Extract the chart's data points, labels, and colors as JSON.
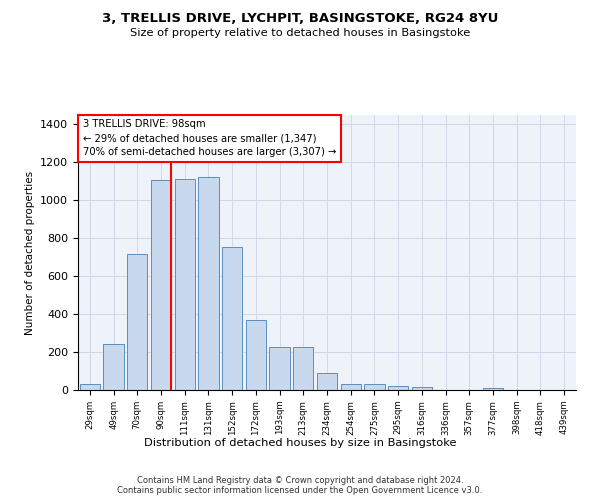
{
  "title": "3, TRELLIS DRIVE, LYCHPIT, BASINGSTOKE, RG24 8YU",
  "subtitle": "Size of property relative to detached houses in Basingstoke",
  "xlabel": "Distribution of detached houses by size in Basingstoke",
  "ylabel": "Number of detached properties",
  "bar_color": "#c9d9ed",
  "bar_edge_color": "#5a8fc2",
  "grid_color": "#d0d8e8",
  "bins": [
    "29sqm",
    "49sqm",
    "70sqm",
    "90sqm",
    "111sqm",
    "131sqm",
    "152sqm",
    "172sqm",
    "193sqm",
    "213sqm",
    "234sqm",
    "254sqm",
    "275sqm",
    "295sqm",
    "316sqm",
    "336sqm",
    "357sqm",
    "377sqm",
    "398sqm",
    "418sqm",
    "439sqm"
  ],
  "values": [
    30,
    240,
    715,
    1105,
    1110,
    1125,
    755,
    370,
    225,
    225,
    90,
    30,
    30,
    22,
    18,
    0,
    0,
    10,
    0,
    0,
    0
  ],
  "red_line_bin_index": 3,
  "annotation_line1": "3 TRELLIS DRIVE: 98sqm",
  "annotation_line2": "← 29% of detached houses are smaller (1,347)",
  "annotation_line3": "70% of semi-detached houses are larger (3,307) →",
  "footer_line1": "Contains HM Land Registry data © Crown copyright and database right 2024.",
  "footer_line2": "Contains public sector information licensed under the Open Government Licence v3.0.",
  "ylim": [
    0,
    1450
  ],
  "background_color": "#eef2f9",
  "fig_width": 6.0,
  "fig_height": 5.0,
  "dpi": 100
}
